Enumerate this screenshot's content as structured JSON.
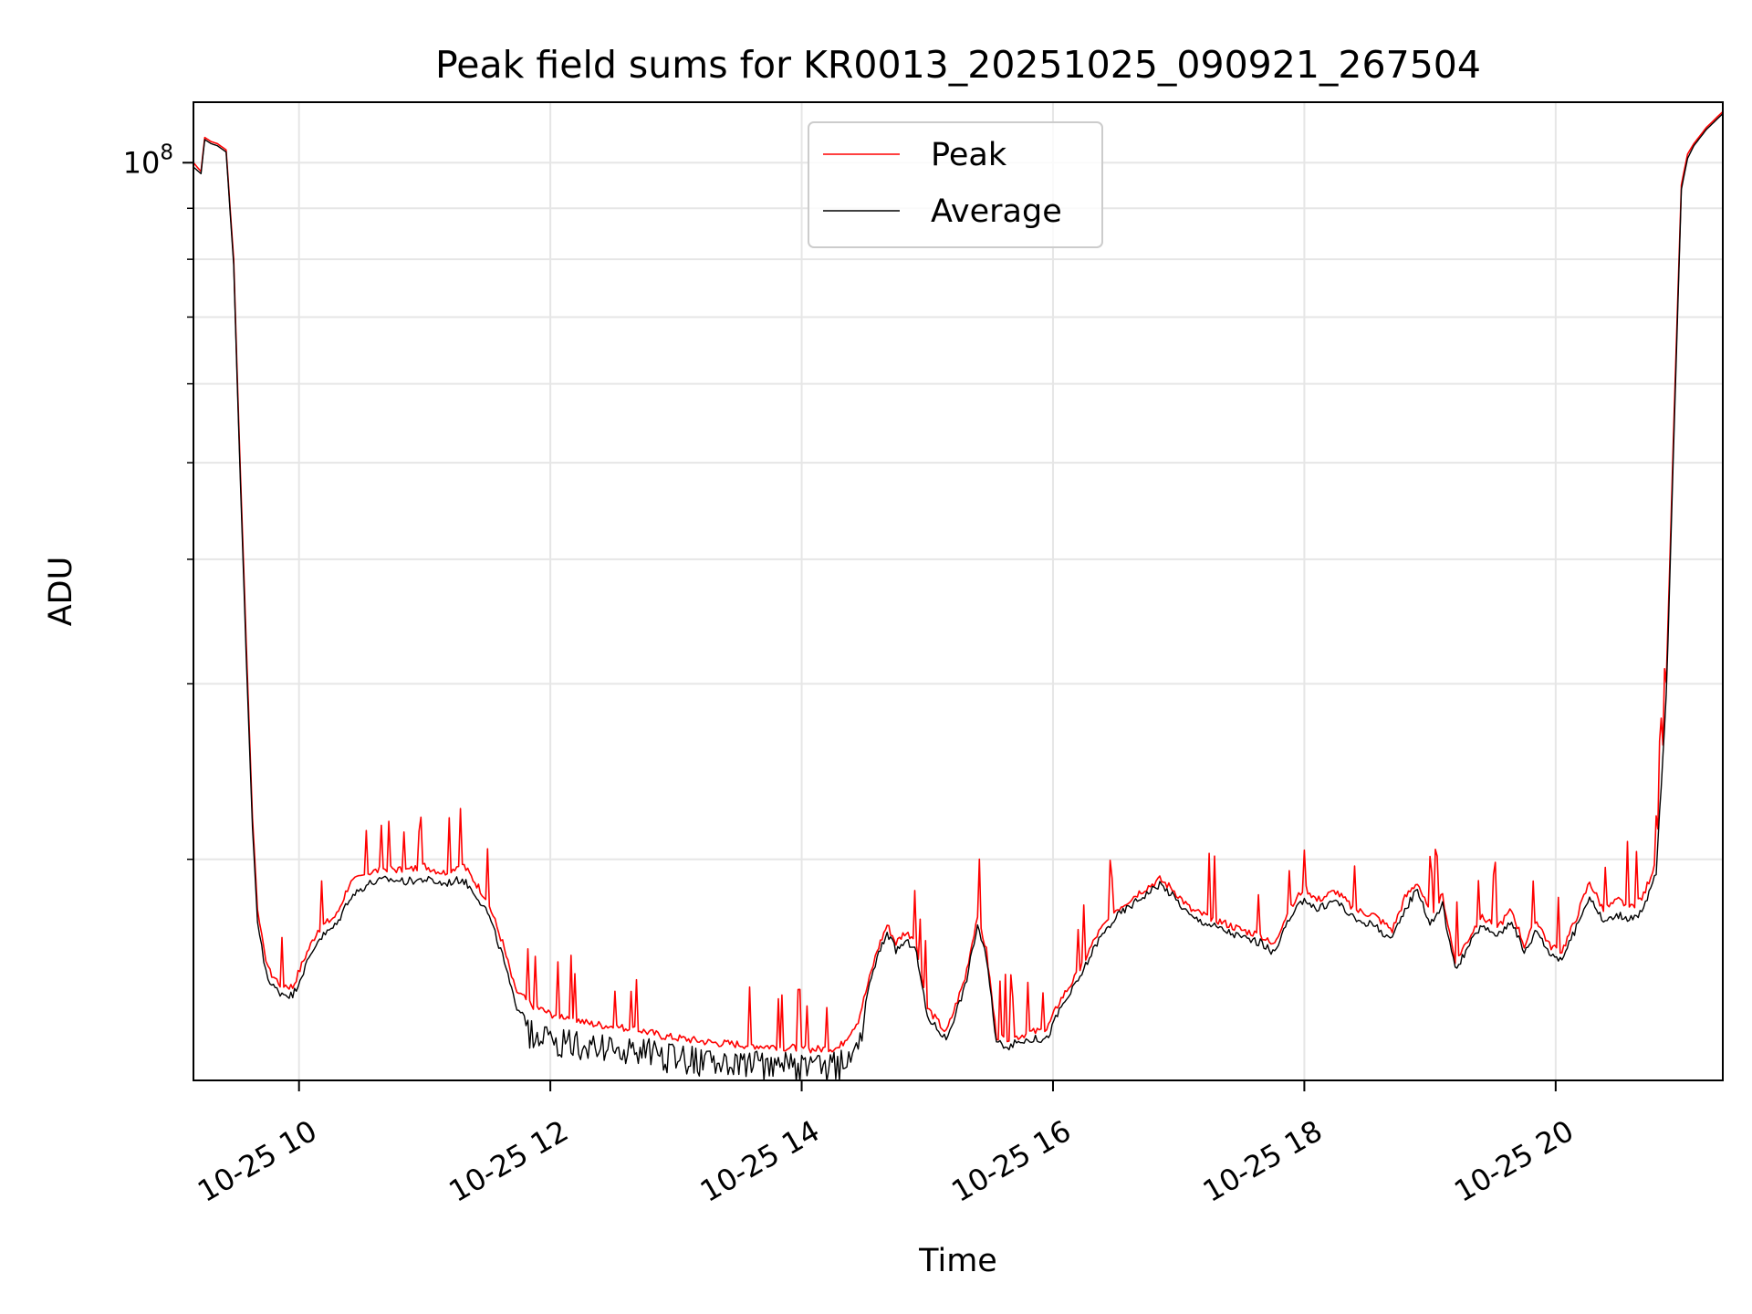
{
  "chart_data": {
    "type": "line",
    "title": "Peak field sums for KR0013_20251025_090921_267504",
    "xlabel": "Time",
    "ylabel": "ADU",
    "yscale": "log",
    "ylim": [
      12000000,
      115000000
    ],
    "xlim_hours": [
      9.16,
      21.33
    ],
    "grid": true,
    "legend_position": "top-center",
    "y_major_ticks": [
      {
        "value": 100000000,
        "base": "10",
        "exp": "8"
      }
    ],
    "y_minor_ticks": [
      20000000,
      30000000,
      40000000,
      50000000,
      60000000,
      70000000,
      80000000,
      90000000
    ],
    "x_ticks": [
      {
        "hour": 10,
        "label": "10-25 10"
      },
      {
        "hour": 12,
        "label": "10-25 12"
      },
      {
        "hour": 14,
        "label": "10-25 14"
      },
      {
        "hour": 16,
        "label": "10-25 16"
      },
      {
        "hour": 18,
        "label": "10-25 18"
      },
      {
        "hour": 20,
        "label": "10-25 20"
      }
    ],
    "series": [
      {
        "name": "Peak",
        "color": "#ff0000",
        "x": [
          9.16,
          9.22,
          9.25,
          9.3,
          9.35,
          9.42,
          9.48,
          9.52,
          9.58,
          9.63,
          9.67,
          9.72,
          9.77,
          9.85,
          9.95,
          10.05,
          10.15,
          10.3,
          10.4,
          10.55,
          10.7,
          10.85,
          11.0,
          11.15,
          11.3,
          11.4,
          11.5,
          11.62,
          11.72,
          11.85,
          12.0,
          12.15,
          12.3,
          12.5,
          12.7,
          12.9,
          13.1,
          13.3,
          13.5,
          13.7,
          13.9,
          14.1,
          14.3,
          14.45,
          14.6,
          14.68,
          14.75,
          14.82,
          14.9,
          15.0,
          15.15,
          15.3,
          15.4,
          15.47,
          15.55,
          15.65,
          15.8,
          15.95,
          16.05,
          16.2,
          16.35,
          16.5,
          16.7,
          16.85,
          16.95,
          17.1,
          17.3,
          17.5,
          17.65,
          17.75,
          17.85,
          18.0,
          18.1,
          18.25,
          18.4,
          18.55,
          18.7,
          18.8,
          18.9,
          19.0,
          19.1,
          19.2,
          19.3,
          19.4,
          19.55,
          19.65,
          19.75,
          19.85,
          19.95,
          20.05,
          20.15,
          20.27,
          20.38,
          20.5,
          20.6,
          20.7,
          20.8,
          20.88,
          20.95,
          21.0,
          21.05,
          21.1,
          21.2,
          21.33
        ],
        "y": [
          100000000,
          98000000,
          106000000,
          105000000,
          104500000,
          103000000,
          80000000,
          55000000,
          33000000,
          22000000,
          17800000,
          16200000,
          15400000,
          15000000,
          14900000,
          16000000,
          17000000,
          17600000,
          18900000,
          19400000,
          19600000,
          19500000,
          19700000,
          19400000,
          19800000,
          19000000,
          18200000,
          16500000,
          14800000,
          14300000,
          14000000,
          13900000,
          13700000,
          13600000,
          13500000,
          13300000,
          13200000,
          13100000,
          13050000,
          13000000,
          12950000,
          12900000,
          12950000,
          13800000,
          16200000,
          17200000,
          16500000,
          16900000,
          16700000,
          14200000,
          13400000,
          15200000,
          17600000,
          16200000,
          13300000,
          13200000,
          13400000,
          13500000,
          14400000,
          15400000,
          16800000,
          17800000,
          18600000,
          19100000,
          18700000,
          17800000,
          17400000,
          17000000,
          16800000,
          16400000,
          17500000,
          18800000,
          18200000,
          18600000,
          17800000,
          17600000,
          17000000,
          18300000,
          19000000,
          17600000,
          18400000,
          15800000,
          16600000,
          17500000,
          17200000,
          17800000,
          16400000,
          17400000,
          16400000,
          16200000,
          17300000,
          19000000,
          17800000,
          18200000,
          17900000,
          18400000,
          20000000,
          30000000,
          60000000,
          95000000,
          102000000,
          104500000,
          108500000,
          112500000
        ]
      },
      {
        "name": "Average",
        "color": "#000000",
        "x": [
          9.16,
          9.22,
          9.25,
          9.3,
          9.35,
          9.42,
          9.48,
          9.52,
          9.58,
          9.63,
          9.67,
          9.72,
          9.77,
          9.85,
          9.95,
          10.05,
          10.15,
          10.3,
          10.4,
          10.55,
          10.7,
          10.85,
          11.0,
          11.15,
          11.3,
          11.4,
          11.5,
          11.62,
          11.72,
          11.85,
          12.0,
          12.15,
          12.3,
          12.5,
          12.7,
          12.9,
          13.1,
          13.3,
          13.5,
          13.7,
          13.9,
          14.1,
          14.3,
          14.45,
          14.6,
          14.68,
          14.75,
          14.82,
          14.9,
          15.0,
          15.15,
          15.3,
          15.4,
          15.47,
          15.55,
          15.65,
          15.8,
          15.95,
          16.05,
          16.2,
          16.35,
          16.5,
          16.7,
          16.85,
          16.95,
          17.1,
          17.3,
          17.5,
          17.65,
          17.75,
          17.85,
          18.0,
          18.1,
          18.25,
          18.4,
          18.55,
          18.7,
          18.8,
          18.9,
          19.0,
          19.1,
          19.2,
          19.3,
          19.4,
          19.55,
          19.65,
          19.75,
          19.85,
          19.95,
          20.05,
          20.15,
          20.27,
          20.38,
          20.5,
          20.6,
          20.7,
          20.8,
          20.88,
          20.95,
          21.0,
          21.05,
          21.1,
          21.2,
          21.33
        ],
        "y": [
          99000000,
          97500000,
          105500000,
          104500000,
          104000000,
          102500000,
          79000000,
          54000000,
          32000000,
          21500000,
          17300000,
          15800000,
          15000000,
          14700000,
          14600000,
          15600000,
          16600000,
          17200000,
          18300000,
          18900000,
          19100000,
          19000000,
          19100000,
          18900000,
          19100000,
          18500000,
          17700000,
          16000000,
          14300000,
          13800000,
          13600000,
          13500000,
          13400000,
          13300000,
          13350000,
          13100000,
          13000000,
          12950000,
          12900000,
          12850000,
          12800000,
          12800000,
          12850000,
          13600000,
          15900000,
          16900000,
          16200000,
          16500000,
          16400000,
          13900000,
          13200000,
          14900000,
          17200000,
          15900000,
          13100000,
          13000000,
          13200000,
          13200000,
          14100000,
          15100000,
          16500000,
          17500000,
          18300000,
          18900000,
          18400000,
          17500000,
          17100000,
          16700000,
          16500000,
          16100000,
          17100000,
          18300000,
          17800000,
          18200000,
          17400000,
          17200000,
          16600000,
          17800000,
          18700000,
          17200000,
          18000000,
          15500000,
          16300000,
          17100000,
          16800000,
          17400000,
          16100000,
          17000000,
          16100000,
          15900000,
          16900000,
          18400000,
          17300000,
          17600000,
          17400000,
          17800000,
          19400000,
          29000000,
          58000000,
          94000000,
          101000000,
          104000000,
          108000000,
          112000000
        ]
      }
    ]
  }
}
